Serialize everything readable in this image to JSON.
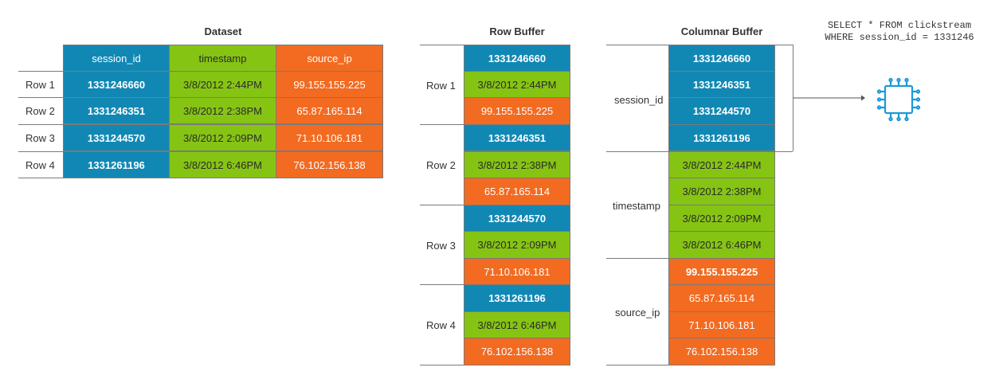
{
  "dataset": {
    "title": "Dataset",
    "headers": [
      "session_id",
      "timestamp",
      "source_ip"
    ],
    "rows": [
      {
        "label": "Row 1",
        "session_id": "1331246660",
        "timestamp": "3/8/2012 2:44PM",
        "source_ip": "99.155.155.225"
      },
      {
        "label": "Row 2",
        "session_id": "1331246351",
        "timestamp": "3/8/2012 2:38PM",
        "source_ip": "65.87.165.114"
      },
      {
        "label": "Row 3",
        "session_id": "1331244570",
        "timestamp": "3/8/2012 2:09PM",
        "source_ip": "71.10.106.181"
      },
      {
        "label": "Row 4",
        "session_id": "1331261196",
        "timestamp": "3/8/2012 6:46PM",
        "source_ip": "76.102.156.138"
      }
    ]
  },
  "row_buffer": {
    "title": "Row Buffer",
    "groups": [
      {
        "label": "Row 1",
        "values": [
          "1331246660",
          "3/8/2012 2:44PM",
          "99.155.155.225"
        ]
      },
      {
        "label": "Row 2",
        "values": [
          "1331246351",
          "3/8/2012 2:38PM",
          "65.87.165.114"
        ]
      },
      {
        "label": "Row 3",
        "values": [
          "1331244570",
          "3/8/2012 2:09PM",
          "71.10.106.181"
        ]
      },
      {
        "label": "Row 4",
        "values": [
          "1331261196",
          "3/8/2012 6:46PM",
          "76.102.156.138"
        ]
      }
    ]
  },
  "columnar_buffer": {
    "title": "Columnar Buffer",
    "groups": [
      {
        "label": "session_id",
        "values": [
          "1331246660",
          "1331246351",
          "1331244570",
          "1331261196"
        ]
      },
      {
        "label": "timestamp",
        "values": [
          "3/8/2012 2:44PM",
          "3/8/2012 2:38PM",
          "3/8/2012 2:09PM",
          "3/8/2012 6:46PM"
        ]
      },
      {
        "label": "source_ip",
        "values": [
          "99.155.155.225",
          "65.87.165.114",
          "71.10.106.181",
          "76.102.156.138"
        ]
      }
    ]
  },
  "query": {
    "line1": "SELECT * FROM clickstream",
    "line2": "WHERE session_id = 1331246"
  },
  "icons": {
    "processor": "cpu-chip-icon"
  },
  "colors": {
    "session_id": "#1188b4",
    "timestamp": "#86c414",
    "source_ip": "#f26b21",
    "chip": "#1e9ad6"
  }
}
